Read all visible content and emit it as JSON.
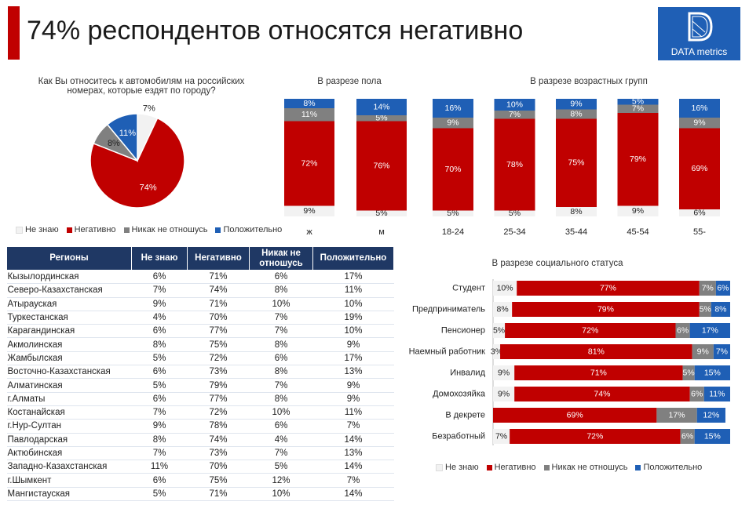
{
  "header": {
    "title": "74% респондентов относятся негативно",
    "logo_text": "DATA metrics"
  },
  "colors": {
    "ne_znayu": "#f2f2f2",
    "negativno": "#c00000",
    "nikak": "#808080",
    "polozhitelno": "#1f5fb5"
  },
  "legend": [
    "Не знаю",
    "Негативно",
    "Никак не отношусь",
    "Положительно"
  ],
  "chart_data": [
    {
      "type": "pie",
      "title": "Как Вы относитесь к автомобилям на российских номерах, которые ездят по городу?",
      "categories": [
        "Не знаю",
        "Негативно",
        "Никак не отношусь",
        "Положительно"
      ],
      "values": [
        7,
        74,
        8,
        11
      ],
      "labels": [
        "7%",
        "74%",
        "8%",
        "11%"
      ]
    },
    {
      "type": "bar",
      "stacked": true,
      "title": "В разрезе пола",
      "categories": [
        "ж",
        "м"
      ],
      "series": [
        {
          "name": "Не знаю",
          "values": [
            9,
            5
          ]
        },
        {
          "name": "Негативно",
          "values": [
            72,
            76
          ]
        },
        {
          "name": "Никак не отношусь",
          "values": [
            11,
            5
          ]
        },
        {
          "name": "Положительно",
          "values": [
            8,
            14
          ]
        }
      ]
    },
    {
      "type": "bar",
      "stacked": true,
      "title": "В разрезе возрастных групп",
      "categories": [
        "18-24",
        "25-34",
        "35-44",
        "45-54",
        "55-"
      ],
      "series": [
        {
          "name": "Не знаю",
          "values": [
            5,
            5,
            8,
            9,
            6
          ]
        },
        {
          "name": "Негативно",
          "values": [
            70,
            78,
            75,
            79,
            69
          ]
        },
        {
          "name": "Никак не отношусь",
          "values": [
            9,
            7,
            8,
            7,
            9
          ]
        },
        {
          "name": "Положительно",
          "values": [
            16,
            10,
            9,
            5,
            16
          ]
        }
      ]
    },
    {
      "type": "table",
      "columns": [
        "Регионы",
        "Не знаю",
        "Негативно",
        "Никак не отношусь",
        "Положительно"
      ],
      "rows": [
        [
          "Кызылординская",
          "6%",
          "71%",
          "6%",
          "17%"
        ],
        [
          "Северо-Казахстанская",
          "7%",
          "74%",
          "8%",
          "11%"
        ],
        [
          "Атырауская",
          "9%",
          "71%",
          "10%",
          "10%"
        ],
        [
          "Туркестанская",
          "4%",
          "70%",
          "7%",
          "19%"
        ],
        [
          "Карагандинская",
          "6%",
          "77%",
          "7%",
          "10%"
        ],
        [
          "Акмолинская",
          "8%",
          "75%",
          "8%",
          "9%"
        ],
        [
          "Жамбылская",
          "5%",
          "72%",
          "6%",
          "17%"
        ],
        [
          "Восточно-Казахстанская",
          "6%",
          "73%",
          "8%",
          "13%"
        ],
        [
          "Алматинская",
          "5%",
          "79%",
          "7%",
          "9%"
        ],
        [
          "г.Алматы",
          "6%",
          "77%",
          "8%",
          "9%"
        ],
        [
          "Костанайская",
          "7%",
          "72%",
          "10%",
          "11%"
        ],
        [
          "г.Нур-Султан",
          "9%",
          "78%",
          "6%",
          "7%"
        ],
        [
          "Павлодарская",
          "8%",
          "74%",
          "4%",
          "14%"
        ],
        [
          "Актюбинская",
          "7%",
          "73%",
          "7%",
          "13%"
        ],
        [
          "Западно-Казахстанская",
          "11%",
          "70%",
          "5%",
          "14%"
        ],
        [
          "г.Шымкент",
          "6%",
          "75%",
          "12%",
          "7%"
        ],
        [
          "Мангистауская",
          "5%",
          "71%",
          "10%",
          "14%"
        ]
      ]
    },
    {
      "type": "bar",
      "stacked": true,
      "orientation": "horizontal",
      "title": "В разрезе социального статуса",
      "categories": [
        "Студент",
        "Предприниматель",
        "Пенсионер",
        "Наемный работник",
        "Инвалид",
        "Домохозяйка",
        "В декрете",
        "Безработный"
      ],
      "series": [
        {
          "name": "Не знаю",
          "values": [
            10,
            8,
            5,
            3,
            9,
            9,
            0,
            7
          ],
          "labels": [
            "10%",
            "8%",
            "5%",
            "3%",
            "9%",
            "9%",
            "",
            "7%"
          ]
        },
        {
          "name": "Негативно",
          "values": [
            77,
            79,
            72,
            81,
            71,
            74,
            69,
            72
          ]
        },
        {
          "name": "Никак не отношусь",
          "values": [
            7,
            5,
            6,
            9,
            5,
            6,
            17,
            6
          ]
        },
        {
          "name": "Положительно",
          "values": [
            6,
            8,
            17,
            7,
            15,
            11,
            12,
            15
          ]
        }
      ]
    }
  ]
}
